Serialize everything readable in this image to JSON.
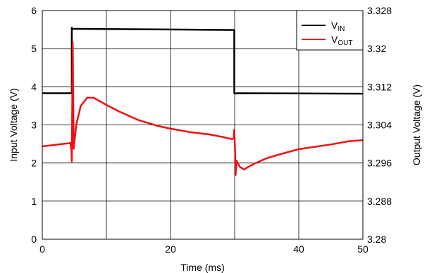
{
  "chart_data": {
    "type": "line",
    "title": "",
    "xlabel": "Time (ms)",
    "ylabel_left": "Input Voltage (V)",
    "ylabel_right": "Output Voltage (V)",
    "xlim": [
      0,
      50
    ],
    "ylim_left": [
      0,
      6
    ],
    "ylim_right": [
      3.28,
      3.328
    ],
    "x_ticks": [
      0,
      20,
      40,
      50
    ],
    "x_gridlines": [
      0,
      10,
      20,
      30,
      40,
      50
    ],
    "y_left_ticks": [
      0,
      1,
      2,
      3,
      4,
      5,
      6
    ],
    "y_right_ticks": [
      "3.28",
      "3.288",
      "3.296",
      "3.304",
      "3.312",
      "3.32",
      "3.328"
    ],
    "grid": true,
    "legend_position": "top-right",
    "legend": [
      {
        "main": "V",
        "sub": "IN",
        "color": "#000000"
      },
      {
        "main": "V",
        "sub": "OUT",
        "color": "#ee1111"
      }
    ],
    "series": [
      {
        "name": "VIN",
        "axis": "left",
        "color": "#000000",
        "x": [
          0,
          4.6,
          4.6,
          4.75,
          4.9,
          29.95,
          29.95,
          30.1,
          30.25,
          50
        ],
        "y": [
          3.83,
          3.83,
          5.55,
          5.52,
          5.52,
          5.49,
          3.83,
          3.82,
          3.83,
          3.82
        ]
      },
      {
        "name": "VOUT",
        "axis": "right",
        "color": "#ee1111",
        "x": [
          0,
          2,
          4.4,
          4.55,
          4.6,
          4.75,
          4.9,
          5.3,
          6,
          7,
          8,
          10,
          12,
          15,
          18,
          20,
          23,
          26,
          28,
          29.6,
          29.85,
          29.95,
          30.05,
          30.15,
          30.3,
          30.8,
          31.5,
          32,
          33,
          35,
          37,
          40,
          43,
          45,
          48,
          50
        ],
        "y": [
          3.2995,
          3.2998,
          3.3002,
          3.2985,
          3.2963,
          3.3214,
          3.299,
          3.304,
          3.308,
          3.3097,
          3.3097,
          3.3082,
          3.3068,
          3.305,
          3.3038,
          3.3032,
          3.3025,
          3.302,
          3.3015,
          3.301,
          3.3012,
          3.303,
          3.299,
          3.2935,
          3.2965,
          3.2952,
          3.2946,
          3.2951,
          3.2958,
          3.297,
          3.2978,
          3.2989,
          3.2995,
          3.2999,
          3.3006,
          3.3008
        ]
      }
    ]
  }
}
